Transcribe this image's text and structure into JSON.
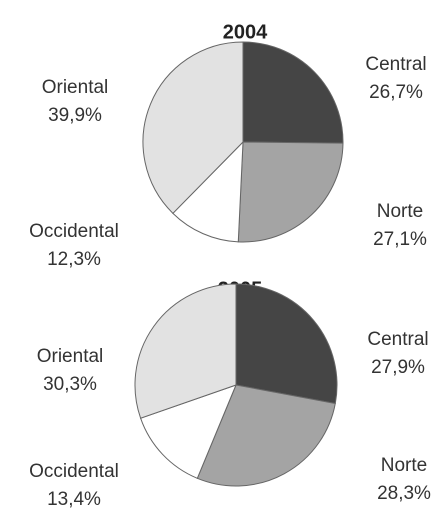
{
  "chart_data": [
    {
      "type": "pie",
      "title": "2004",
      "categories": [
        "Central",
        "Norte",
        "Occidental",
        "Oriental"
      ],
      "values": [
        26.7,
        27.1,
        12.3,
        39.9
      ],
      "value_labels": [
        "26,7%",
        "27,1%",
        "12,3%",
        "39,9%"
      ],
      "colors": [
        "#454545",
        "#a4a4a4",
        "#ffffff",
        "#e2e2e2"
      ]
    },
    {
      "type": "pie",
      "title": "2005",
      "categories": [
        "Central",
        "Norte",
        "Occidental",
        "Oriental"
      ],
      "values": [
        27.9,
        28.3,
        13.4,
        30.3
      ],
      "value_labels": [
        "27,9%",
        "28,3%",
        "13,4%",
        "30,3%"
      ],
      "colors": [
        "#454545",
        "#a4a4a4",
        "#ffffff",
        "#e2e2e2"
      ]
    }
  ]
}
